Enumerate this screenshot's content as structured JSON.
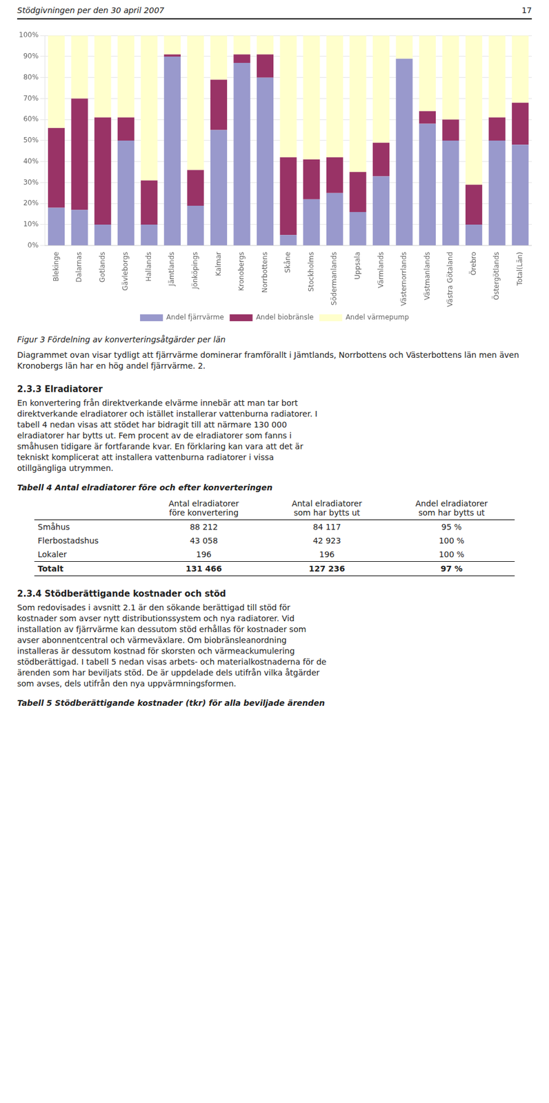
{
  "header": "Stödgivningen per den 30 april 2007",
  "page_number": "17",
  "chart_data": {
    "type": "bar",
    "stacked": true,
    "categories": [
      "Blekinge",
      "Dalarnas",
      "Gotlands",
      "Gävleborgs",
      "Hallands",
      "Jämtlands",
      "Jönköpings",
      "Kalmar",
      "Kronobergs",
      "Norrbottens",
      "Skåne",
      "Stockholms",
      "Södermanlands",
      "Uppsala",
      "Värmlands",
      "Västernorrlands",
      "Västmanlands",
      "Västra Götaland",
      "Örebro",
      "Östergötlands",
      "Total(Län)"
    ],
    "series": [
      {
        "name": "Andel fjärrvärme",
        "color": "#9999cc",
        "values": [
          18,
          17,
          10,
          50,
          10,
          90,
          19,
          55,
          87,
          80,
          5,
          22,
          25,
          16,
          33,
          89,
          58,
          50,
          10,
          50,
          48
        ]
      },
      {
        "name": "Andel biobränsle",
        "color": "#993366",
        "values": [
          38,
          53,
          51,
          11,
          21,
          1,
          17,
          24,
          4,
          11,
          37,
          19,
          17,
          19,
          16,
          0,
          6,
          10,
          19,
          11,
          20
        ]
      },
      {
        "name": "Andel värmepump",
        "color": "#ffffcc",
        "values": [
          44,
          30,
          39,
          39,
          69,
          9,
          64,
          21,
          9,
          9,
          58,
          59,
          58,
          65,
          51,
          11,
          36,
          40,
          71,
          39,
          32
        ]
      }
    ],
    "ylim": [
      0,
      100
    ],
    "yticks": [
      {
        "value": 0,
        "label": "0%"
      },
      {
        "value": 10,
        "label": "10%"
      },
      {
        "value": 20,
        "label": "20%"
      },
      {
        "value": 30,
        "label": "30%"
      },
      {
        "value": 40,
        "label": "40%"
      },
      {
        "value": 50,
        "label": "50%"
      },
      {
        "value": 60,
        "label": "60%"
      },
      {
        "value": 70,
        "label": "70%"
      },
      {
        "value": 80,
        "label": "80%"
      },
      {
        "value": 90,
        "label": "90%"
      },
      {
        "value": 100,
        "label": "100%"
      }
    ],
    "grid": true,
    "legend": "bottom"
  },
  "caption": "Figur 3 Fördelning av konverteringsåtgärder per län",
  "body_text": "Diagrammet ovan visar tydligt att fjärrvärme dominerar framförallt i Jämtlands, Norrbottens och Västerbottens län men även Kronobergs län har en hög andel fjärrvärme. 2.",
  "sections": [
    {
      "heading": "2.3.3 Elradiatorer",
      "lines": [
        "En konvertering från direktverkande elvärme innebär att man tar bort",
        "direktverkande elradiatorer och istället installerar vattenburna radiatorer. I",
        "tabell 4 nedan visas att stödet har bidragit till att närmare 130 000",
        "elradiatorer har bytts ut. Fem procent av de elradiatorer som fanns i",
        "småhusen tidigare är fortfarande kvar. En förklaring kan vara att det är",
        "tekniskt komplicerat att installera vattenburna radiatorer i vissa",
        "otillgängliga utrymmen."
      ],
      "table_heading": "Tabell 4 Antal elradiatorer före och efter konverteringen",
      "table_columns": [
        "Antal elradiatorer\nföre konvertering",
        "Antal elradiatorer\nsom har bytts ut",
        "Andel elradiatorer\nsom har bytts ut"
      ],
      "table_rows": [
        [
          "Småhus",
          "88 212",
          "84 117",
          "95 %"
        ],
        [
          "Flerbostadshus",
          "43 058",
          "42 923",
          "100 %"
        ],
        [
          "Lokaler",
          "196",
          "196",
          "100 %"
        ],
        [
          "Totalt",
          "131 466",
          "127 236",
          "97 %"
        ]
      ]
    },
    {
      "heading": "2.3.4 Stödberättigande kostnader och stöd",
      "lines": [
        "Som redovisades i avsnitt 2.1 är den sökande berättigad till stöd för",
        "kostnader som avser nytt distributionssystem och nya radiatorer. Vid",
        "installation av fjärrvärme kan dessutom stöd erhållas för kostnader som",
        "avser abonnentcentral och värmeväxlare. Om biobränsleanordning",
        "installeras är dessutom kostnad för skorsten och värmeackumulering",
        "stödberättigad. I tabell 5 nedan visas arbets- och materialkostnaderna för de",
        "ärenden som har beviljats stöd. De är uppdelade dels utifrån vilka åtgärder",
        "som avses, dels utifrån den nya uppvärmningsformen."
      ],
      "table_heading": "Tabell 5 Stödberättigande kostnader (tkr) för alla beviljade ärenden"
    }
  ]
}
